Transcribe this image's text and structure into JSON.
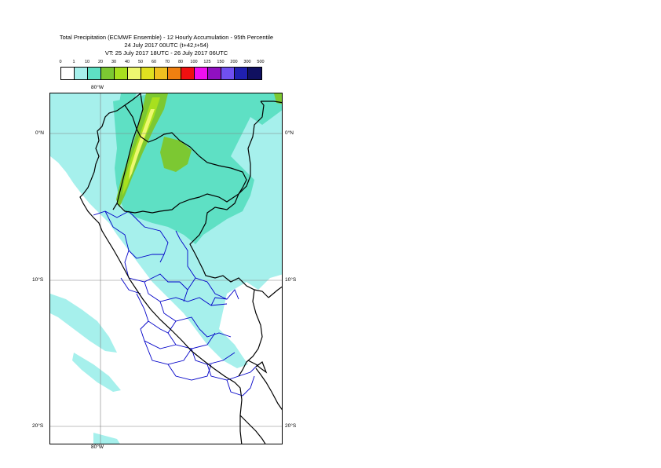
{
  "title": {
    "line1": "Total Precipitation (ECMWF Ensemble) - 12 Hourly Accumulation - 95th Percentile",
    "line2": "24 July 2017 00UTC (t+42,t+54)",
    "line3": "VT: 25 July 2017 18UTC - 26 July 2017 06UTC"
  },
  "legend": {
    "ticks": [
      "0",
      "1",
      "10",
      "20",
      "30",
      "40",
      "50",
      "60",
      "70",
      "80",
      "100",
      "125",
      "150",
      "200",
      "300",
      "500"
    ],
    "colors": [
      "#ffffff",
      "#a6f0ec",
      "#5ee0c4",
      "#7cc832",
      "#a8e01e",
      "#eef870",
      "#e0e020",
      "#f0c020",
      "#f08010",
      "#f01010",
      "#f010f0",
      "#9010c0",
      "#7050f0",
      "#2020b0",
      "#101060"
    ]
  },
  "map": {
    "lon_top": "80°W",
    "lon_bottom": "80°W",
    "lat_labels": {
      "eq_left": "0°N",
      "eq_right": "0°N",
      "s10_left": "10°S",
      "s10_right": "10°S",
      "s20_left": "20°S",
      "s20_right": "20°S"
    },
    "colors": {
      "ocean": "#ffffff",
      "light": "#a6f0ec",
      "medium": "#5ee0c4",
      "green": "#7cc832",
      "lime": "#a8e01e",
      "yellow": "#eef870",
      "grid": "#808080",
      "coast": "#000000",
      "provinces": "#0000c8"
    }
  }
}
